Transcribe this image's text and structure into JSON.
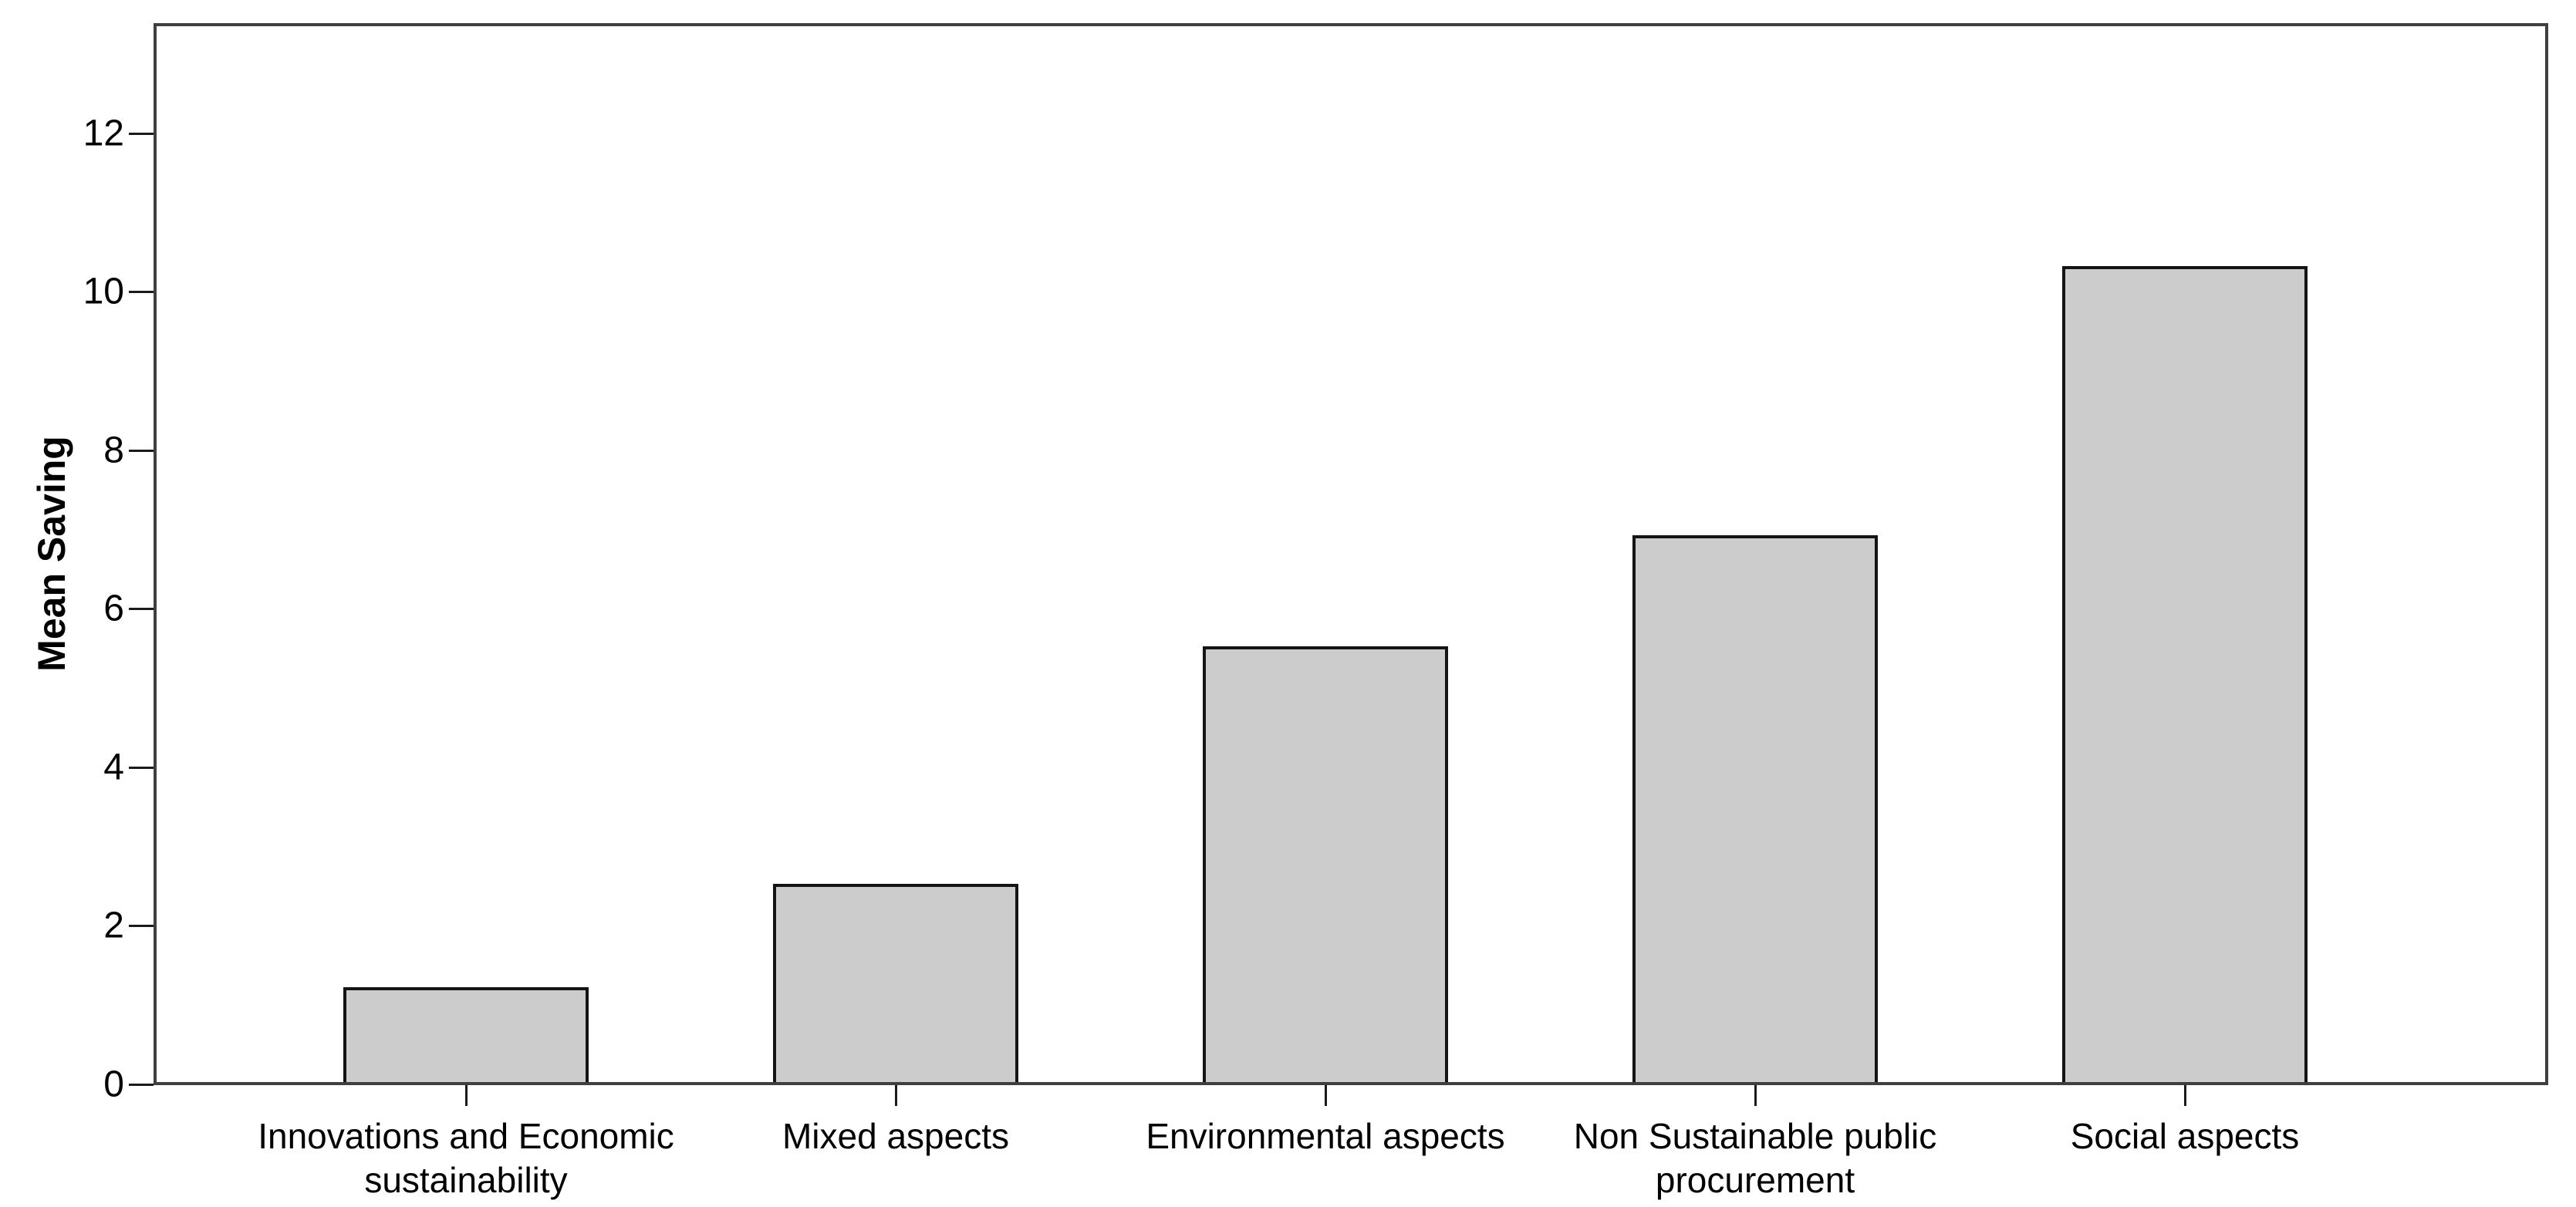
{
  "chart_data": {
    "type": "bar",
    "ylabel": "Mean Saving",
    "categories": [
      "Innovations and Economic sustainability",
      "Mixed aspects",
      "Environmental aspects",
      "Non Sustainable public procurement",
      "Social aspects"
    ],
    "values": [
      1.2,
      2.5,
      5.5,
      6.9,
      10.3
    ],
    "yticks": [
      0,
      2,
      4,
      6,
      8,
      10,
      12
    ],
    "ylim": [
      0,
      13.4
    ],
    "grid": false,
    "legend": false,
    "colors": {
      "bar_fill": "#cccccc",
      "bar_border": "#141414",
      "frame": "#3f3f3f",
      "text": "#000000",
      "background": "#ffffff"
    }
  }
}
